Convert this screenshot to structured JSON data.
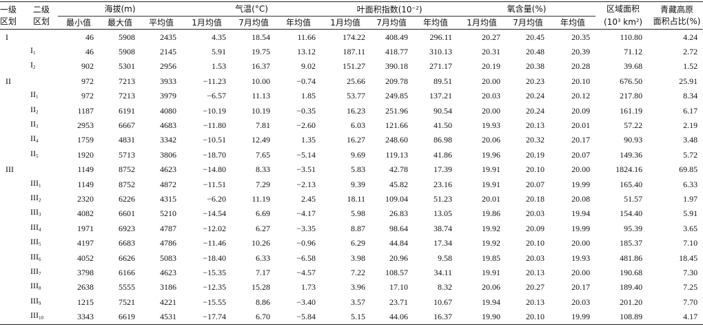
{
  "header": {
    "level1": [
      "一级",
      "区划"
    ],
    "level2": [
      "二级",
      "区划"
    ],
    "altitude": "海拔(m)",
    "temperature": "气温(°C)",
    "lai": "叶面积指数(10",
    "lai_exp": "−2",
    "lai_close": ")",
    "oxygen": "氧含量(%)",
    "area_line1": "区域面积",
    "area_line2_pre": "(10",
    "area_line2_exp": "3",
    "area_line2_post": " km",
    "area_line2_exp2": "2",
    "area_line2_close": ")",
    "share": [
      "青藏高原",
      "面积占比(%)"
    ],
    "alt_sub": [
      "最小值",
      "最大值",
      "平均值"
    ],
    "temp_sub": [
      "1月均值",
      "7月均值",
      "年均值"
    ],
    "lai_sub": [
      "1月均值",
      "7月均值",
      "年均值"
    ],
    "oxy_sub": [
      "1月均值",
      "7月均值",
      "年均值"
    ]
  },
  "rows": [
    {
      "l1": "I",
      "l2": "",
      "sub": "",
      "v": [
        "46",
        "5908",
        "2435",
        "4.35",
        "18.54",
        "11.66",
        "174.22",
        "408.49",
        "296.11",
        "20.27",
        "20.45",
        "20.35",
        "110.80",
        "4.24"
      ]
    },
    {
      "l1": "",
      "l2": "I",
      "sub": "1",
      "v": [
        "46",
        "5908",
        "2145",
        "5.91",
        "19.75",
        "13.12",
        "187.11",
        "418.77",
        "310.13",
        "20.31",
        "20.48",
        "20.39",
        "71.12",
        "2.72"
      ]
    },
    {
      "l1": "",
      "l2": "I",
      "sub": "2",
      "v": [
        "902",
        "5301",
        "2956",
        "1.53",
        "16.37",
        "9.02",
        "151.27",
        "390.18",
        "271.17",
        "20.19",
        "20.38",
        "20.28",
        "39.68",
        "1.52"
      ]
    },
    {
      "l1": "II",
      "l2": "",
      "sub": "",
      "v": [
        "972",
        "7213",
        "3933",
        "−11.23",
        "10.00",
        "−0.74",
        "25.66",
        "209.78",
        "89.51",
        "20.00",
        "20.23",
        "20.10",
        "676.50",
        "25.91"
      ]
    },
    {
      "l1": "",
      "l2": "II",
      "sub": "1",
      "v": [
        "972",
        "7213",
        "3979",
        "−6.57",
        "11.13",
        "1.85",
        "53.77",
        "249.85",
        "137.21",
        "20.03",
        "20.24",
        "20.12",
        "217.80",
        "8.34"
      ]
    },
    {
      "l1": "",
      "l2": "II",
      "sub": "2",
      "v": [
        "1187",
        "6191",
        "4080",
        "−10.19",
        "10.19",
        "−0.35",
        "16.23",
        "251.96",
        "90.54",
        "20.00",
        "20.24",
        "20.09",
        "161.19",
        "6.17"
      ]
    },
    {
      "l1": "",
      "l2": "II",
      "sub": "3",
      "v": [
        "2953",
        "6667",
        "4683",
        "−11.80",
        "7.81",
        "−2.60",
        "6.03",
        "121.66",
        "41.50",
        "19.93",
        "20.13",
        "20.01",
        "57.22",
        "2.19"
      ]
    },
    {
      "l1": "",
      "l2": "II",
      "sub": "4",
      "v": [
        "1759",
        "4831",
        "3342",
        "−10.51",
        "12.49",
        "1.35",
        "16.27",
        "248.60",
        "86.98",
        "20.06",
        "20.32",
        "20.17",
        "90.93",
        "3.48"
      ]
    },
    {
      "l1": "",
      "l2": "II",
      "sub": "5",
      "v": [
        "1920",
        "5713",
        "3806",
        "−18.70",
        "7.65",
        "−5.14",
        "9.69",
        "119.13",
        "41.86",
        "19.96",
        "20.19",
        "20.07",
        "149.36",
        "5.72"
      ]
    },
    {
      "l1": "III",
      "l2": "",
      "sub": "",
      "v": [
        "1149",
        "8752",
        "4623",
        "−14.80",
        "8.33",
        "−3.51",
        "5.83",
        "42.78",
        "17.39",
        "19.91",
        "20.10",
        "20.00",
        "1824.16",
        "69.85"
      ]
    },
    {
      "l1": "",
      "l2": "III",
      "sub": "1",
      "v": [
        "1149",
        "8752",
        "4872",
        "−11.51",
        "7.29",
        "−2.13",
        "9.39",
        "45.82",
        "23.16",
        "19.91",
        "20.07",
        "19.99",
        "165.40",
        "6.33"
      ]
    },
    {
      "l1": "",
      "l2": "III",
      "sub": "2",
      "v": [
        "2320",
        "6226",
        "4315",
        "−6.20",
        "11.19",
        "2.45",
        "18.11",
        "109.04",
        "51.23",
        "20.01",
        "20.18",
        "20.08",
        "51.57",
        "1.97"
      ]
    },
    {
      "l1": "",
      "l2": "III",
      "sub": "3",
      "v": [
        "4082",
        "6601",
        "5210",
        "−14.54",
        "6.69",
        "−4.17",
        "5.98",
        "26.83",
        "13.05",
        "19.86",
        "20.03",
        "19.94",
        "154.40",
        "5.91"
      ]
    },
    {
      "l1": "",
      "l2": "III",
      "sub": "4",
      "v": [
        "1971",
        "6923",
        "4787",
        "−12.02",
        "6.27",
        "−3.35",
        "8.87",
        "98.64",
        "38.74",
        "19.92",
        "20.09",
        "19.99",
        "95.39",
        "3.65"
      ]
    },
    {
      "l1": "",
      "l2": "III",
      "sub": "5",
      "v": [
        "4197",
        "6683",
        "4786",
        "−11.46",
        "10.26",
        "−0.96",
        "6.29",
        "44.84",
        "17.34",
        "19.92",
        "20.10",
        "20.00",
        "185.37",
        "7.10"
      ]
    },
    {
      "l1": "",
      "l2": "III",
      "sub": "6",
      "v": [
        "4052",
        "6626",
        "5083",
        "−18.40",
        "6.33",
        "−6.58",
        "3.98",
        "20.96",
        "9.58",
        "19.85",
        "20.03",
        "19.93",
        "481.86",
        "18.45"
      ]
    },
    {
      "l1": "",
      "l2": "III",
      "sub": "7",
      "v": [
        "3798",
        "6166",
        "4623",
        "−15.35",
        "7.17",
        "−4.57",
        "7.22",
        "108.57",
        "34.11",
        "19.91",
        "20.13",
        "20.00",
        "190.68",
        "7.30"
      ]
    },
    {
      "l1": "",
      "l2": "III",
      "sub": "8",
      "v": [
        "2638",
        "5555",
        "3186",
        "−12.35",
        "15.28",
        "1.73",
        "3.96",
        "17.10",
        "8.32",
        "20.06",
        "20.27",
        "20.17",
        "189.40",
        "7.25"
      ]
    },
    {
      "l1": "",
      "l2": "III",
      "sub": "9",
      "v": [
        "1215",
        "7521",
        "4221",
        "−15.55",
        "8.86",
        "−3.40",
        "3.57",
        "23.71",
        "10.67",
        "19.94",
        "20.13",
        "20.03",
        "201.20",
        "7.70"
      ]
    },
    {
      "l1": "",
      "l2": "III",
      "sub": "10",
      "v": [
        "3343",
        "6619",
        "4531",
        "−17.74",
        "6.70",
        "−5.84",
        "5.15",
        "44.06",
        "16.37",
        "19.90",
        "20.10",
        "19.99",
        "108.89",
        "4.17"
      ]
    }
  ]
}
